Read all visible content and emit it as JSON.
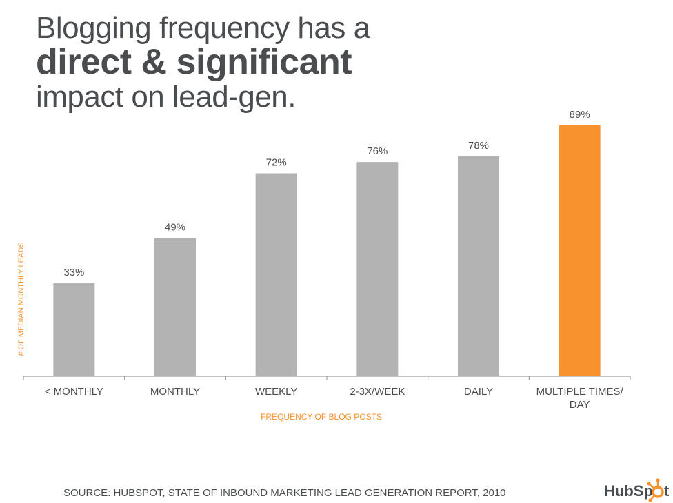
{
  "title": {
    "line1": "Blogging frequency has a",
    "line2": "direct & significant",
    "line3": "impact on lead-gen."
  },
  "chart_data": {
    "type": "bar",
    "categories": [
      "< MONTHLY",
      "MONTHLY",
      "WEEKLY",
      "2-3X/WEEK",
      "DAILY",
      "MULTIPLE TIMES/ DAY"
    ],
    "category_lines": [
      [
        "< MONTHLY"
      ],
      [
        "MONTHLY"
      ],
      [
        "WEEKLY"
      ],
      [
        "2-3X/WEEK"
      ],
      [
        "DAILY"
      ],
      [
        "MULTIPLE TIMES/",
        "DAY"
      ]
    ],
    "values": [
      33,
      49,
      72,
      76,
      78,
      89
    ],
    "data_labels": [
      "33%",
      "49%",
      "72%",
      "76%",
      "78%",
      "89%"
    ],
    "xlabel": "FREQUENCY OF BLOG POSTS",
    "ylabel": "# OF MEDIAN MONTHLY LEADS",
    "ylim": [
      0,
      100
    ],
    "grid": false,
    "colors": {
      "bar": "#b3b3b3",
      "highlight": "#f7922c",
      "axis_label": "#f7922c",
      "text": "#4a4d50"
    },
    "highlight_index": 5
  },
  "footer": {
    "source": "SOURCE: HUBSPOT, STATE OF INBOUND MARKETING LEAD GENERATION REPORT, 2010"
  },
  "logo": {
    "text": "HubSpot",
    "icon": "sprocket-icon"
  }
}
